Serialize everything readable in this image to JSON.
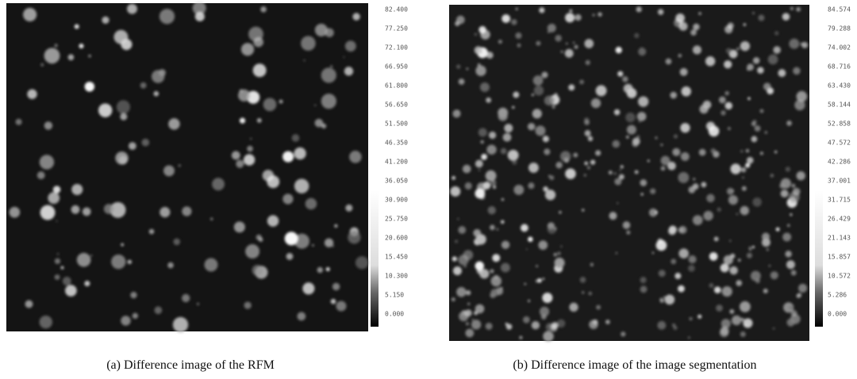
{
  "figure": {
    "panels": [
      {
        "caption": "(a) Difference image of the RFM",
        "colorbar_labels": [
          "82.400",
          "77.250",
          "72.100",
          "66.950",
          "61.800",
          "56.650",
          "51.500",
          "46.350",
          "41.200",
          "36.050",
          "30.900",
          "25.750",
          "20.600",
          "15.450",
          "10.300",
          "5.150",
          "0.000"
        ]
      },
      {
        "caption": "(b) Difference image of the image segmentation",
        "colorbar_labels": [
          "84.574",
          "79.288",
          "74.002",
          "68.716",
          "63.430",
          "58.144",
          "52.858",
          "47.572",
          "42.286",
          "37.001",
          "31.715",
          "26.429",
          "21.143",
          "15.857",
          "10.572",
          "5.286",
          "0.000"
        ]
      }
    ]
  }
}
